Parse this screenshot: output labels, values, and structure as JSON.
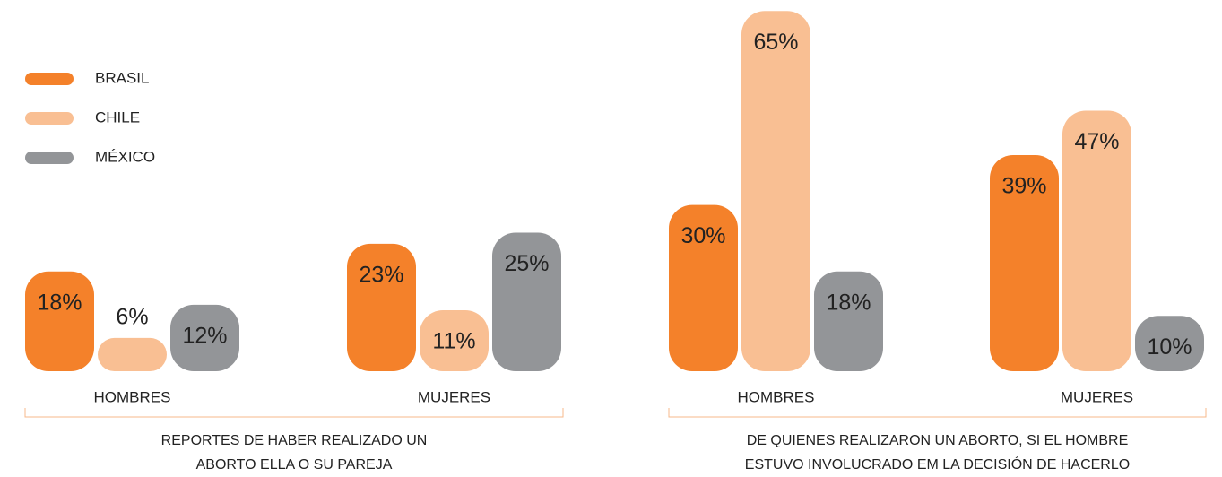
{
  "legend": [
    {
      "name": "BRASIL",
      "color": "#f4812a"
    },
    {
      "name": "CHILE",
      "color": "#f9bf93"
    },
    {
      "name": "MÉXICO",
      "color": "#939598"
    }
  ],
  "chart_data": [
    {
      "type": "bar",
      "title": [
        "REPORTES DE HABER REALIZADO UN",
        "ABORTO ELLA O SU PAREJA"
      ],
      "categories": [
        "HOMBRES",
        "MUJERES"
      ],
      "series": [
        {
          "values": [
            18,
            23
          ],
          "value_labels": [
            "18%",
            "23%"
          ]
        },
        {
          "values": [
            6,
            11
          ],
          "value_labels": [
            "6%",
            "11%"
          ]
        },
        {
          "values": [
            12,
            25
          ],
          "value_labels": [
            "12%",
            "25%"
          ]
        }
      ]
    },
    {
      "type": "bar",
      "title": [
        "DE QUIENES REALIZARON  UN ABORTO, SI EL HOMBRE",
        "ESTUVO INVOLUCRADO EM LA DECISIÓN DE HACERLO"
      ],
      "categories": [
        "HOMBRES",
        "MUJERES"
      ],
      "series": [
        {
          "values": [
            30,
            39
          ],
          "value_labels": [
            "30%",
            "39%"
          ]
        },
        {
          "values": [
            65,
            47
          ],
          "value_labels": [
            "65%",
            "47%"
          ]
        },
        {
          "values": [
            18,
            10
          ],
          "value_labels": [
            "18%",
            "10%"
          ]
        }
      ]
    }
  ]
}
